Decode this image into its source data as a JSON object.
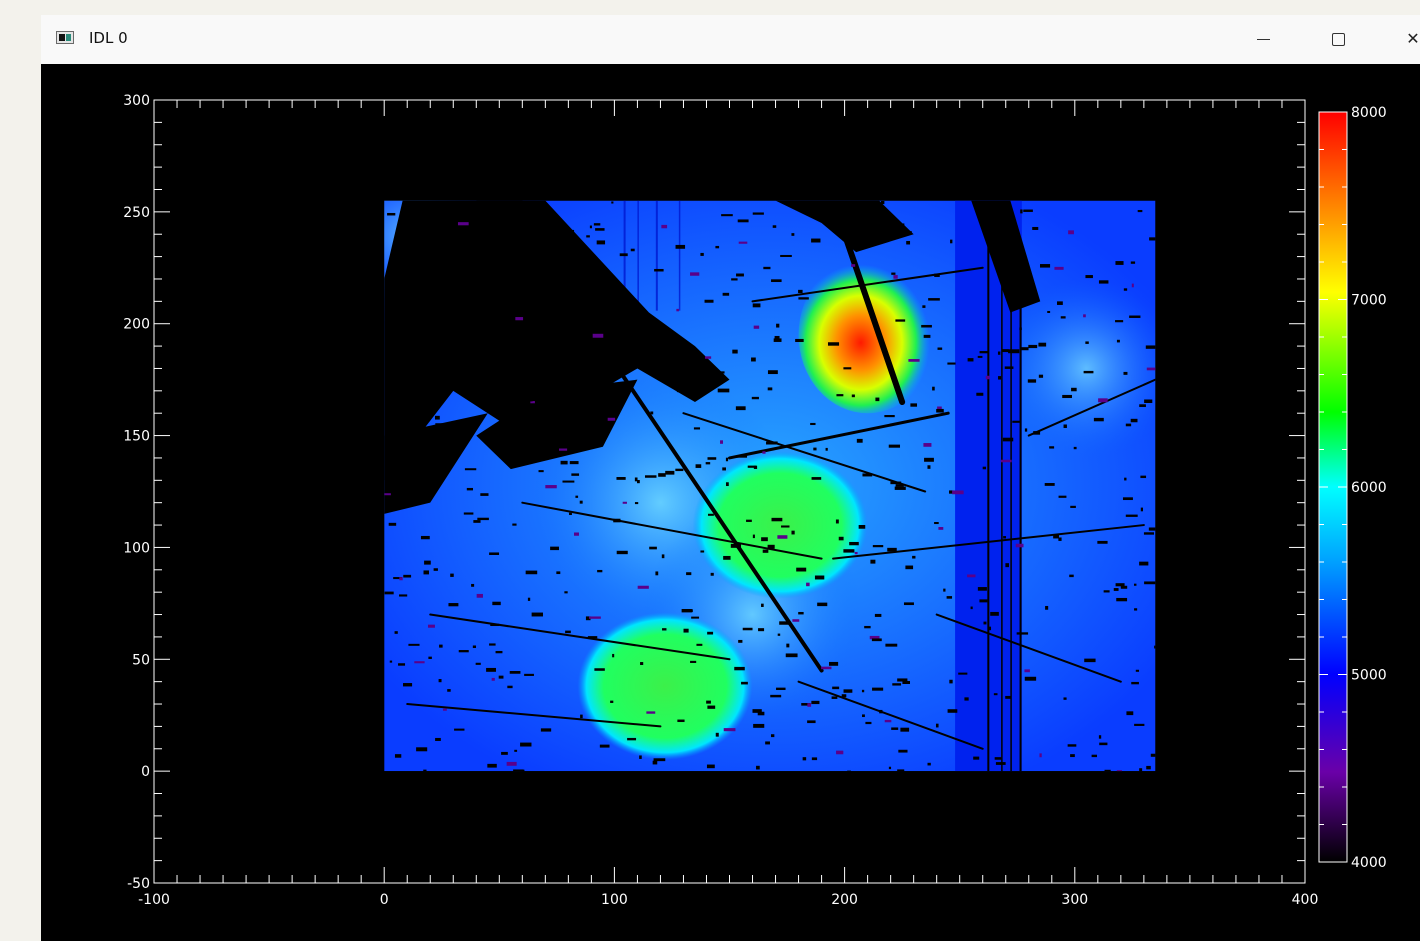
{
  "window": {
    "title": "IDL 0",
    "controls": {
      "minimize": "minimize-icon",
      "maximize": "maximize-icon",
      "close": "close-icon"
    }
  },
  "colors": {
    "plot_background": "#000000",
    "axis": "#ffffff",
    "colorbar_scale": [
      "#000000",
      "#6a00a8",
      "#0000ff",
      "#00a0ff",
      "#00ffff",
      "#00ff00",
      "#ffff00",
      "#ff8000",
      "#ff0000"
    ]
  },
  "chart_data": [
    {
      "type": "heatmap",
      "title": "",
      "xlabel": "",
      "ylabel": "",
      "xlim": [
        -100,
        400
      ],
      "ylim": [
        -50,
        300
      ],
      "x_ticks": [
        "-100",
        "0",
        "100",
        "200",
        "300",
        "400"
      ],
      "y_ticks": [
        "-50",
        "0",
        "50",
        "100",
        "150",
        "200",
        "250",
        "300"
      ],
      "image_extent": {
        "x": [
          0,
          335
        ],
        "y": [
          0,
          255
        ]
      },
      "grid": false,
      "colormap": "rainbow",
      "value_range": [
        4000,
        8000
      ],
      "hotspots": [
        {
          "x": 122,
          "y": 38,
          "value": 6000
        },
        {
          "x": 172,
          "y": 110,
          "value": 6000
        },
        {
          "x": 210,
          "y": 195,
          "value": 7600
        }
      ]
    },
    {
      "type": "heatmap",
      "title": "",
      "colorbar": true,
      "ylim": [
        4000,
        8000
      ],
      "ticks": [
        "4000",
        "5000",
        "6000",
        "7000",
        "8000"
      ]
    }
  ]
}
